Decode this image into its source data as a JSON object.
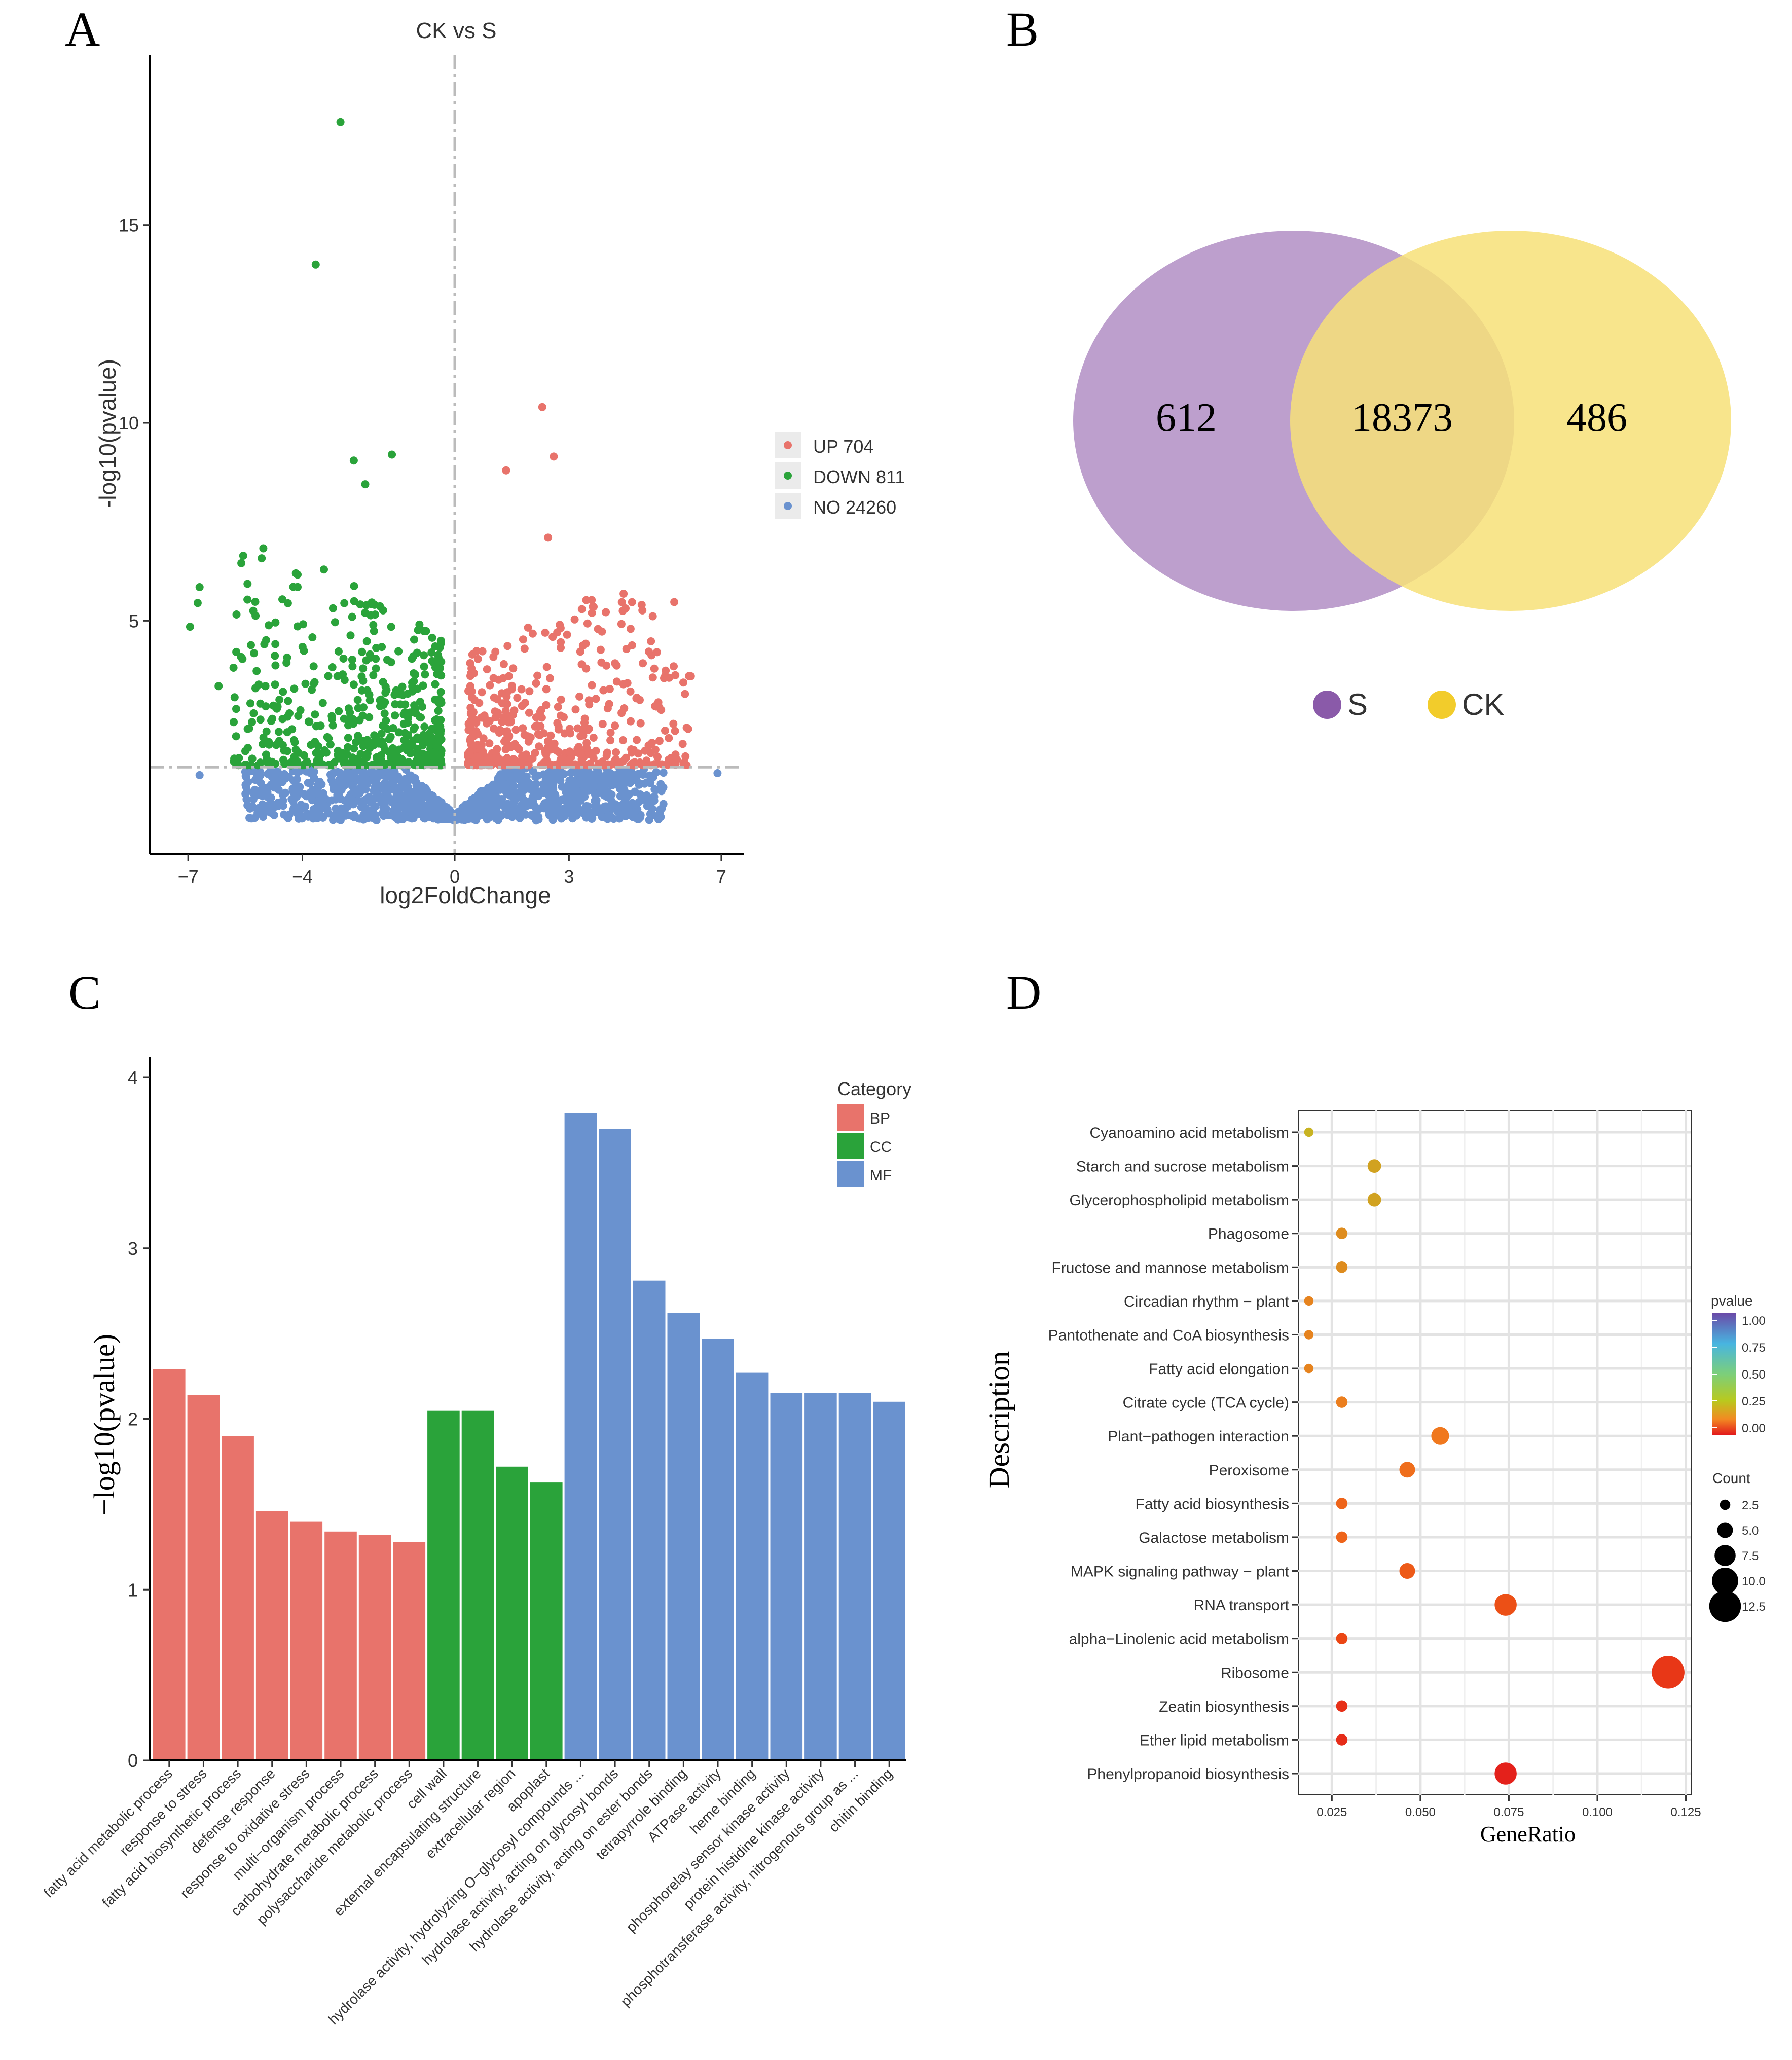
{
  "panel_labels": [
    "A",
    "B",
    "C",
    "D"
  ],
  "chart_data": [
    {
      "panel": "A",
      "type": "scatter",
      "title": "CK vs S",
      "xlabel": "log2FoldChange",
      "ylabel": "-log10(pvalue)",
      "xticks": [
        -7,
        -4,
        0,
        3,
        7
      ],
      "yticks": [
        5,
        10,
        15
      ],
      "xlim": [
        -8,
        7.6
      ],
      "ylim": [
        -0.9,
        19.3
      ],
      "thresholds": {
        "x": 0,
        "y": 1.3
      },
      "legend": [
        {
          "label": "UP 704",
          "color": "#e8736b"
        },
        {
          "label": "DOWN 811",
          "color": "#2aa33a"
        },
        {
          "label": "NO 24260",
          "color": "#6a92cf"
        }
      ],
      "labeled_points": [
        {
          "x": -3.0,
          "y": 17.6,
          "group": "DOWN"
        },
        {
          "x": -3.65,
          "y": 14.0,
          "group": "DOWN"
        },
        {
          "x": -2.65,
          "y": 9.05,
          "group": "DOWN"
        },
        {
          "x": -1.65,
          "y": 9.2,
          "group": "DOWN"
        },
        {
          "x": -2.35,
          "y": 8.45,
          "group": "DOWN"
        },
        {
          "x": -6.7,
          "y": 5.85,
          "group": "DOWN"
        },
        {
          "x": -6.75,
          "y": 5.45,
          "group": "DOWN"
        },
        {
          "x": -6.95,
          "y": 4.85,
          "group": "DOWN"
        },
        {
          "x": -6.2,
          "y": 3.35,
          "group": "DOWN"
        },
        {
          "x": 2.3,
          "y": 10.4,
          "group": "UP"
        },
        {
          "x": 2.6,
          "y": 9.15,
          "group": "UP"
        },
        {
          "x": 1.35,
          "y": 8.8,
          "group": "UP"
        },
        {
          "x": 6.2,
          "y": 3.6,
          "group": "UP"
        },
        {
          "x": 5.75,
          "y": 3.85,
          "group": "UP"
        },
        {
          "x": 2.45,
          "y": 7.1,
          "group": "UP"
        },
        {
          "x": -6.7,
          "y": 1.1,
          "group": "NO"
        },
        {
          "x": 6.9,
          "y": 1.15,
          "group": "NO"
        }
      ]
    },
    {
      "panel": "B",
      "type": "venn",
      "sets": [
        {
          "name": "S",
          "only": "612",
          "color": "#8a5aa9"
        },
        {
          "name": "CK",
          "only": "486",
          "color": "#f2cc2b"
        }
      ],
      "intersection": "18373",
      "legend": [
        "S",
        "CK"
      ]
    },
    {
      "panel": "C",
      "type": "bar",
      "ylabel": "−log10(pvalue)",
      "ylim": [
        0,
        4
      ],
      "yticks": [
        0,
        1,
        2,
        3,
        4
      ],
      "legend_title": "Category",
      "legend": [
        {
          "label": "BP",
          "color": "#e8736b"
        },
        {
          "label": "CC",
          "color": "#2aa33a"
        },
        {
          "label": "MF",
          "color": "#6a92cf"
        }
      ],
      "categories": [
        "fatty acid metabolic process",
        "response to stress",
        "fatty acid biosynthetic process",
        "defense response",
        "response to oxidative stress",
        "multi−organism process",
        "carbohydrate metabolic process",
        "polysaccharide metabolic process",
        "cell wall",
        "external encapsulating structure",
        "extracellular region",
        "apoplast",
        "hydrolase activity, hydrolyzing O−glycosyl compounds ...",
        "hydrolase activity, acting on glycosyl bonds",
        "hydrolase activity, acting on ester bonds",
        "tetrapyrrole binding",
        "ATPase activity",
        "heme binding",
        "phosphorelay sensor kinase activity",
        "protein histidine kinase activity",
        "phosphotransferase activity, nitrogenous group as ...",
        "chitin binding"
      ],
      "values": [
        2.29,
        2.14,
        1.9,
        1.46,
        1.4,
        1.34,
        1.32,
        1.28,
        2.05,
        2.05,
        1.72,
        1.63,
        3.79,
        3.7,
        2.81,
        2.62,
        2.47,
        2.27,
        2.15,
        2.15,
        2.15,
        2.1
      ],
      "groups": [
        "BP",
        "BP",
        "BP",
        "BP",
        "BP",
        "BP",
        "BP",
        "BP",
        "CC",
        "CC",
        "CC",
        "CC",
        "MF",
        "MF",
        "MF",
        "MF",
        "MF",
        "MF",
        "MF",
        "MF",
        "MF",
        "MF"
      ]
    },
    {
      "panel": "D",
      "type": "scatter",
      "xlabel": "GeneRatio",
      "ylabel": "Description",
      "xlim": [
        0.0155,
        0.1265
      ],
      "xticks": [
        "0.025",
        "0.050",
        "0.075",
        "0.100",
        "0.125"
      ],
      "color_legend_title": "pvalue",
      "color_ticks": [
        "1.00",
        "0.75",
        "0.50",
        "0.25",
        "0.00"
      ],
      "size_legend_title": "Count",
      "size_ticks": [
        "2.5",
        "5.0",
        "7.5",
        "10.0",
        "12.5"
      ],
      "categories": [
        "Cyanoamino acid metabolism",
        "Starch and sucrose metabolism",
        "Glycerophospholipid metabolism",
        "Phagosome",
        "Fructose and mannose metabolism",
        "Circadian rhythm − plant",
        "Pantothenate and CoA biosynthesis",
        "Fatty acid elongation",
        "Citrate cycle (TCA cycle)",
        "Plant−pathogen interaction",
        "Peroxisome",
        "Fatty acid biosynthesis",
        "Galactose metabolism",
        "MAPK signaling pathway − plant",
        "RNA transport",
        "alpha−Linolenic acid metabolism",
        "Ribosome",
        "Zeatin biosynthesis",
        "Ether lipid metabolism",
        "Phenylpropanoid biosynthesis"
      ],
      "gene_ratio": [
        0.0185,
        0.037,
        0.037,
        0.0278,
        0.0278,
        0.0185,
        0.0185,
        0.0185,
        0.0278,
        0.0556,
        0.0463,
        0.0278,
        0.0278,
        0.0463,
        0.0741,
        0.0278,
        0.12,
        0.0278,
        0.0278,
        0.0741
      ],
      "count": [
        2,
        4,
        4,
        3,
        3,
        2,
        2,
        2,
        3,
        6,
        5,
        3,
        3,
        5,
        8,
        3,
        13,
        3,
        3,
        8
      ],
      "pvalue": [
        0.22,
        0.19,
        0.19,
        0.15,
        0.15,
        0.12,
        0.12,
        0.12,
        0.1,
        0.08,
        0.07,
        0.06,
        0.06,
        0.05,
        0.04,
        0.03,
        0.02,
        0.015,
        0.012,
        0.005
      ]
    }
  ]
}
